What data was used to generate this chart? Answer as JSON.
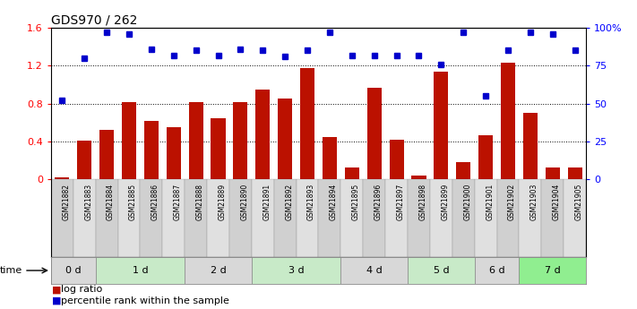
{
  "title": "GDS970 / 262",
  "samples": [
    "GSM21882",
    "GSM21883",
    "GSM21884",
    "GSM21885",
    "GSM21886",
    "GSM21887",
    "GSM21888",
    "GSM21889",
    "GSM21890",
    "GSM21891",
    "GSM21892",
    "GSM21893",
    "GSM21894",
    "GSM21895",
    "GSM21896",
    "GSM21897",
    "GSM21898",
    "GSM21899",
    "GSM21900",
    "GSM21901",
    "GSM21902",
    "GSM21903",
    "GSM21904",
    "GSM21905"
  ],
  "log_ratio": [
    0.02,
    0.41,
    0.52,
    0.82,
    0.62,
    0.55,
    0.82,
    0.65,
    0.82,
    0.95,
    0.85,
    1.18,
    0.45,
    0.13,
    0.97,
    0.42,
    0.04,
    1.14,
    0.18,
    0.47,
    1.23,
    0.7,
    0.13,
    0.13
  ],
  "percentile_pct": [
    52,
    80,
    97,
    96,
    86,
    82,
    85,
    82,
    86,
    85,
    81,
    85,
    97,
    82,
    82,
    82,
    82,
    76,
    97,
    55,
    85,
    97,
    96,
    85
  ],
  "time_groups": [
    {
      "label": "0 d",
      "start": 0,
      "end": 1,
      "color": "#d8d8d8"
    },
    {
      "label": "1 d",
      "start": 2,
      "end": 5,
      "color": "#c8eac8"
    },
    {
      "label": "2 d",
      "start": 6,
      "end": 8,
      "color": "#d8d8d8"
    },
    {
      "label": "3 d",
      "start": 9,
      "end": 12,
      "color": "#c8eac8"
    },
    {
      "label": "4 d",
      "start": 13,
      "end": 15,
      "color": "#d8d8d8"
    },
    {
      "label": "5 d",
      "start": 16,
      "end": 18,
      "color": "#c8eac8"
    },
    {
      "label": "6 d",
      "start": 19,
      "end": 20,
      "color": "#d8d8d8"
    },
    {
      "label": "7 d",
      "start": 21,
      "end": 23,
      "color": "#90ee90"
    }
  ],
  "bar_color": "#bb1100",
  "dot_color": "#0000cc",
  "bg_color": "#ffffff",
  "label_box_color_odd": "#d0d0d0",
  "label_box_color_even": "#e0e0e0",
  "legend_log_ratio": "log ratio",
  "legend_percentile": "percentile rank within the sample"
}
